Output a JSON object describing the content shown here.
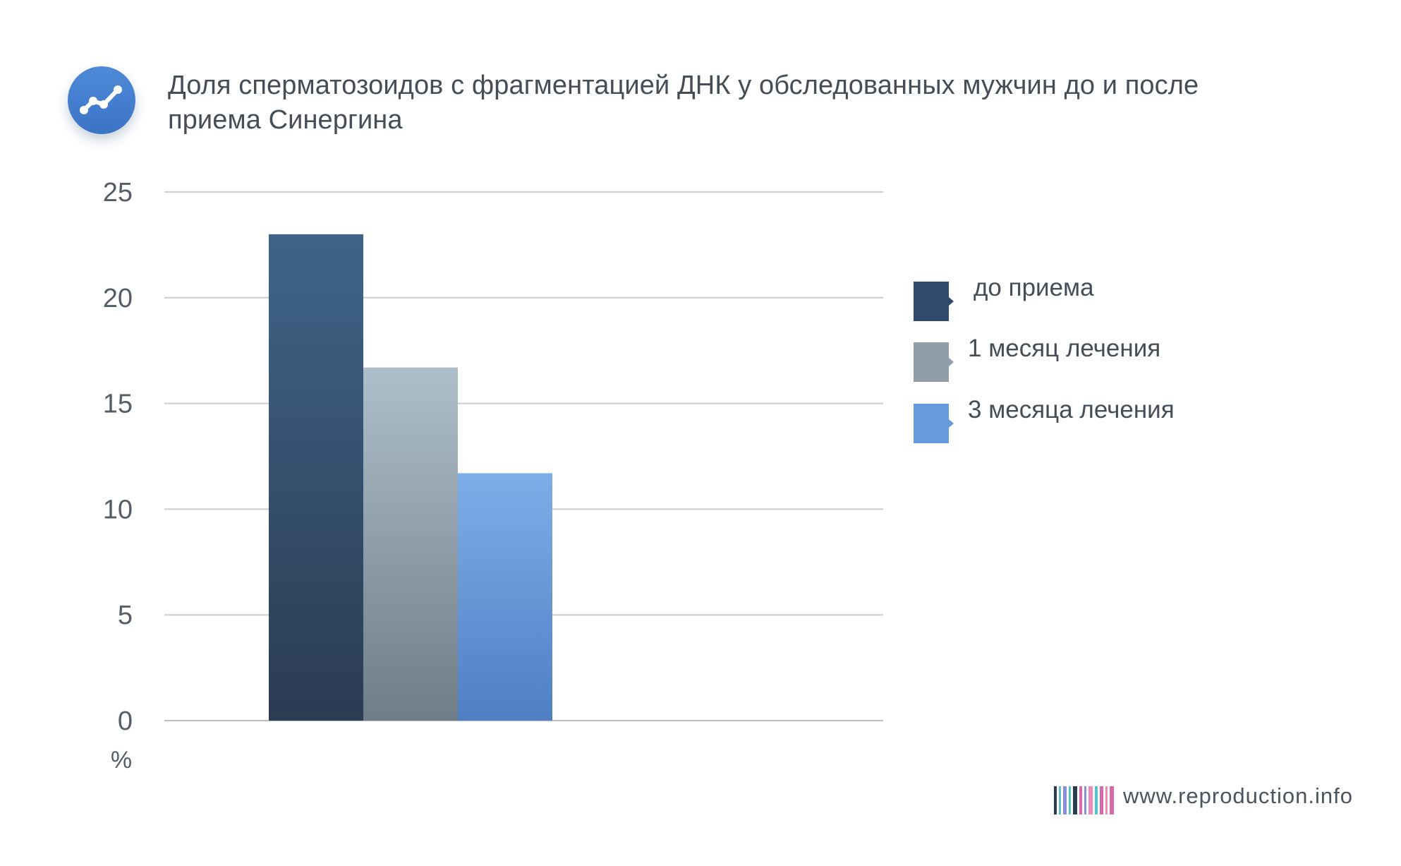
{
  "header": {
    "title": "Доля сперматозоидов с фрагментацией ДНК у обследованных мужчин до и после приема Синергина",
    "icon": "line-chart-icon",
    "icon_color": "#4380d0"
  },
  "chart_data": {
    "type": "bar",
    "title": "Доля сперматозоидов с фрагментацией ДНК у обследованных мужчин до и после приема Синергина",
    "xlabel": "",
    "ylabel": "%",
    "ylim": [
      0,
      25
    ],
    "yticks": [
      "0",
      "5",
      "10",
      "15",
      "20",
      "25"
    ],
    "grid": true,
    "legend_position": "right",
    "categories": [
      ""
    ],
    "series": [
      {
        "name": "до приема",
        "values": [
          23
        ],
        "color": "#2f4a6b"
      },
      {
        "name": "1 месяц лечения",
        "values": [
          16.7
        ],
        "color": "#8f9ea8"
      },
      {
        "name": "3 месяца лечения",
        "values": [
          11.7
        ],
        "color": "#6699dd"
      }
    ]
  },
  "footer": {
    "url": "www.reproduction.info",
    "logo": "barcode-logo-icon",
    "logo_colors": [
      "#2a3b4f",
      "#57c0c9",
      "#8a8fd9",
      "#d96aa9",
      "#f08bb9"
    ]
  }
}
